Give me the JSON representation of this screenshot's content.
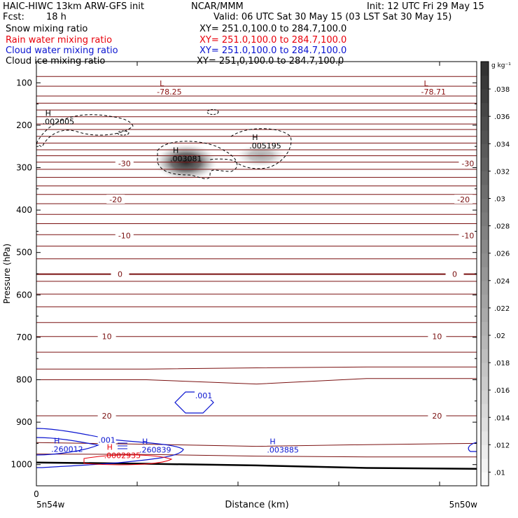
{
  "header": {
    "title_left": "HAIC-HIWC 13km ARW-GFS init",
    "center": "NCAR/MMM",
    "init": "Init: 12 UTC Fri 29 May 15",
    "fcst_label": "Fcst:",
    "fcst_value": "18 h",
    "valid": "Valid: 06 UTC Sat 30 May 15 (03 LST Sat 30 May 15)"
  },
  "fields": [
    {
      "name": "Snow mixing ratio",
      "xy": "XY= 251.0,100.0 to 284.7,100.0",
      "color": "#000000"
    },
    {
      "name": "Rain water mixing ratio",
      "xy": "XY= 251.0,100.0 to 284.7,100.0",
      "color": "#e8000b"
    },
    {
      "name": "Cloud water mixing ratio",
      "xy": "XY= 251.0,100.0 to 284.7,100.0",
      "color": "#0a14d0"
    },
    {
      "name": "Cloud ice mixing ratio",
      "xy": "XY= 251.0,100.0 to 284.7,100.0",
      "color": "#000000"
    }
  ],
  "chart_data": {
    "type": "heatmap",
    "xlabel": "Distance (km)",
    "ylabel": "Pressure (hPa)",
    "x_tick_labels": [
      "0"
    ],
    "x_end_labels": [
      "5n54w",
      "5n50w"
    ],
    "y_ticks": [
      100,
      200,
      300,
      400,
      500,
      600,
      700,
      800,
      900,
      1000
    ],
    "ylim": [
      1050,
      50
    ],
    "colorbar": {
      "unit": "g kg⁻¹",
      "ticks": [
        ".01",
        ".012",
        ".014",
        ".016",
        ".018",
        ".02",
        ".022",
        ".024",
        ".026",
        ".028",
        ".03",
        ".032",
        ".034",
        ".036",
        ".038"
      ],
      "range": [
        0.009,
        0.04
      ]
    },
    "temperature_contour_labels": [
      {
        "text": "-30",
        "p": 290,
        "x": 0.2
      },
      {
        "text": "-30",
        "p": 290,
        "x": 0.98
      },
      {
        "text": "-20",
        "p": 375,
        "x": 0.18
      },
      {
        "text": "-20",
        "p": 375,
        "x": 0.97
      },
      {
        "text": "-10",
        "p": 460,
        "x": 0.2
      },
      {
        "text": "-10",
        "p": 460,
        "x": 0.98
      },
      {
        "text": "0",
        "p": 551,
        "x": 0.19
      },
      {
        "text": "0",
        "p": 551,
        "x": 0.95
      },
      {
        "text": "10",
        "p": 698,
        "x": 0.16
      },
      {
        "text": "10",
        "p": 698,
        "x": 0.91
      },
      {
        "text": "20",
        "p": 885,
        "x": 0.16
      },
      {
        "text": "20",
        "p": 885,
        "x": 0.91
      }
    ],
    "extrema": [
      {
        "type": "L",
        "value": "-78.25",
        "x": 0.28,
        "p": 118,
        "color": "#8b1010"
      },
      {
        "type": "L",
        "value": "-78.71",
        "x": 0.88,
        "p": 118,
        "color": "#8b1010"
      },
      {
        "type": "H",
        "value": ".002005",
        "x": 0.02,
        "p": 188,
        "color": "#000000"
      },
      {
        "type": "H",
        "value": ".003081",
        "x": 0.31,
        "p": 275,
        "color": "#000000"
      },
      {
        "type": "H",
        "value": ".005195",
        "x": 0.49,
        "p": 245,
        "color": "#000000"
      },
      {
        "type": "H",
        "value": ".260012",
        "x": 0.04,
        "p": 960,
        "color": "#0a14d0"
      },
      {
        "type": "H",
        "value": ".0002935",
        "x": 0.16,
        "p": 975,
        "color": "#e8000b"
      },
      {
        "type": "H",
        "value": ".260839",
        "x": 0.24,
        "p": 962,
        "color": "#0a14d0"
      },
      {
        "type": "H",
        "value": ".003885",
        "x": 0.53,
        "p": 962,
        "color": "#0a14d0"
      }
    ],
    "cloud_water_labels": [
      {
        "text": ".001",
        "x": 0.38,
        "p": 837
      },
      {
        "text": ".001",
        "x": 0.16,
        "p": 942
      }
    ],
    "ice_maxima": [
      {
        "x": 0.34,
        "p": 287,
        "value": 0.03081,
        "rx": 0.075,
        "rp": 45
      },
      {
        "x": 0.51,
        "p": 272,
        "value": 0.018,
        "rx": 0.06,
        "rp": 28
      }
    ],
    "theta_contours": [
      {
        "p": [
          85,
          85,
          85,
          85,
          85
        ]
      },
      {
        "p": [
          108,
          108,
          108,
          108,
          108
        ]
      },
      {
        "p": [
          131,
          131,
          131,
          131,
          131
        ]
      },
      {
        "p": [
          148,
          148,
          148,
          148,
          148
        ]
      },
      {
        "p": [
          164,
          164,
          164,
          164,
          164
        ]
      },
      {
        "p": [
          180,
          180,
          180,
          180,
          180
        ]
      },
      {
        "p": [
          197,
          197,
          197,
          197,
          197
        ]
      },
      {
        "p": [
          210,
          210,
          210,
          210,
          210
        ]
      },
      {
        "p": [
          226,
          226,
          226,
          226,
          226
        ]
      },
      {
        "p": [
          242,
          242,
          242,
          242,
          242
        ]
      },
      {
        "p": [
          258,
          258,
          258,
          258,
          258
        ]
      },
      {
        "p": [
          272,
          272,
          272,
          272,
          272
        ]
      },
      {
        "p": [
          287,
          287,
          287,
          287,
          287
        ]
      },
      {
        "p": [
          304,
          304,
          304,
          304,
          304
        ]
      },
      {
        "p": [
          323,
          323,
          323,
          323,
          323
        ]
      },
      {
        "p": [
          343,
          343,
          343,
          343,
          343
        ]
      },
      {
        "p": [
          363,
          363,
          363,
          363,
          363
        ]
      },
      {
        "p": [
          385,
          385,
          385,
          385,
          385
        ]
      },
      {
        "p": [
          410,
          410,
          410,
          410,
          410
        ]
      },
      {
        "p": [
          432,
          432,
          432,
          432,
          432
        ]
      },
      {
        "p": [
          458,
          458,
          458,
          458,
          458
        ]
      },
      {
        "p": [
          485,
          485,
          485,
          485,
          485
        ]
      },
      {
        "p": [
          515,
          515,
          515,
          515,
          515
        ]
      },
      {
        "p": [
          551,
          551,
          551,
          551,
          551
        ],
        "bold": true
      },
      {
        "p": [
          568,
          568,
          568,
          568,
          568
        ]
      },
      {
        "p": [
          598,
          598,
          598,
          598,
          598
        ]
      },
      {
        "p": [
          628,
          628,
          628,
          628,
          628
        ]
      },
      {
        "p": [
          665,
          665,
          665,
          665,
          665
        ]
      },
      {
        "p": [
          698,
          698,
          698,
          698,
          698
        ]
      },
      {
        "p": [
          735,
          735,
          735,
          735,
          735
        ]
      },
      {
        "p": [
          775,
          775,
          772,
          770,
          770
        ]
      },
      {
        "p": [
          800,
          800,
          810,
          797,
          797
        ]
      },
      {
        "p": [
          885,
          885,
          885,
          885,
          885
        ]
      },
      {
        "p": [
          948,
          952,
          957,
          953,
          950
        ]
      },
      {
        "p": [
          975,
          976,
          980,
          982,
          982
        ]
      }
    ],
    "terrain_p": [
      995,
      998,
      1002,
      1008,
      1010
    ]
  }
}
